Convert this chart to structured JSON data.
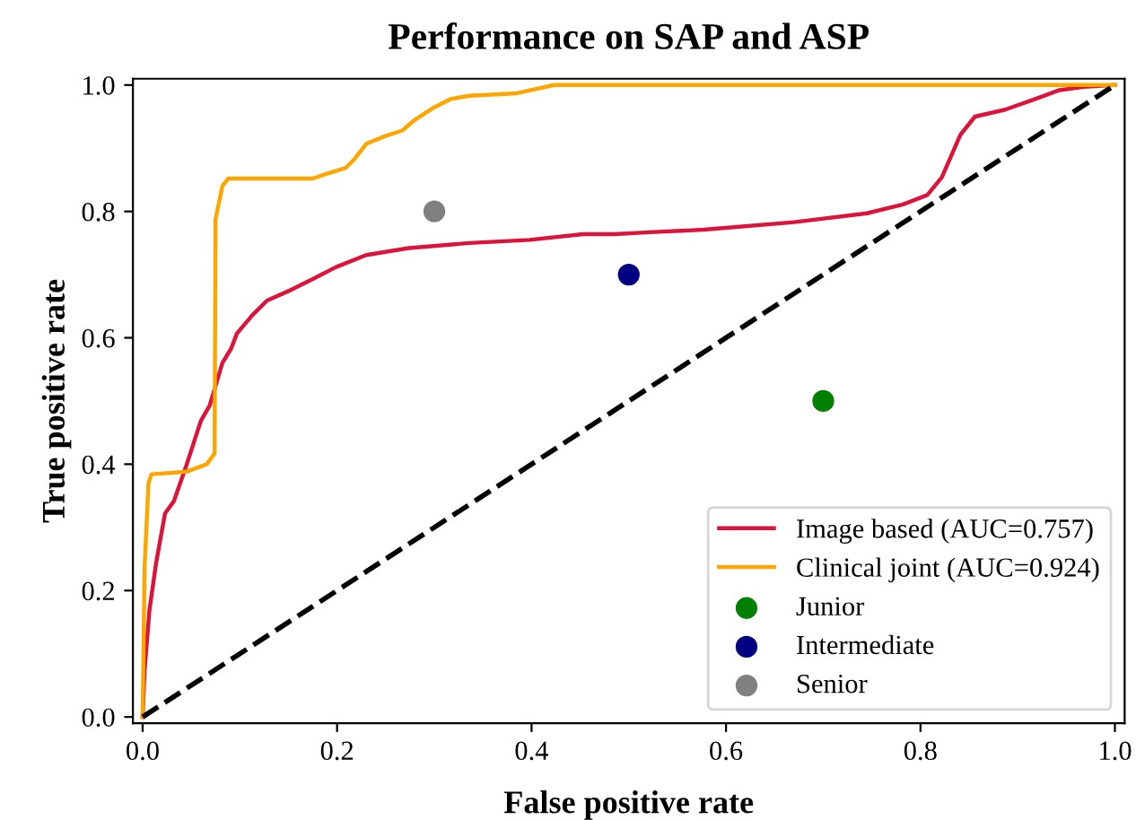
{
  "chart_data": {
    "type": "line",
    "title": "Performance on SAP and ASP",
    "xlabel": "False positive rate",
    "ylabel": "True positive rate",
    "xlim": [
      -0.01,
      1.01
    ],
    "ylim": [
      -0.01,
      1.01
    ],
    "xticks": [
      {
        "value": 0,
        "label": "0.0"
      },
      0.2,
      0.4,
      0.6,
      0.8,
      {
        "value": 1,
        "label": "1.0"
      }
    ],
    "yticks": [
      {
        "value": 0,
        "label": "0.0"
      },
      0.2,
      0.4,
      0.6,
      0.8,
      {
        "value": 1,
        "label": "1.0"
      }
    ],
    "grid": false,
    "legend": "bottom right",
    "series": [
      {
        "name": "Image based (AUC=0.757)",
        "color": "#dc143c",
        "line_style": "solid",
        "x": [
          0,
          0.002,
          0.007,
          0.014,
          0.023,
          0.032,
          0.045,
          0.057,
          0.06,
          0.069,
          0.082,
          0.091,
          0.097,
          0.113,
          0.128,
          0.15,
          0.175,
          0.199,
          0.23,
          0.274,
          0.336,
          0.398,
          0.453,
          0.485,
          0.521,
          0.577,
          0.67,
          0.745,
          0.782,
          0.807,
          0.822,
          0.841,
          0.856,
          0.887,
          0.918,
          0.943,
          0.968,
          1.0
        ],
        "values": [
          0,
          0.074,
          0.169,
          0.245,
          0.322,
          0.341,
          0.398,
          0.455,
          0.469,
          0.493,
          0.56,
          0.583,
          0.607,
          0.636,
          0.659,
          0.674,
          0.693,
          0.712,
          0.731,
          0.742,
          0.75,
          0.755,
          0.764,
          0.764,
          0.767,
          0.771,
          0.783,
          0.797,
          0.811,
          0.826,
          0.854,
          0.921,
          0.95,
          0.961,
          0.978,
          0.992,
          0.997,
          1.0
        ]
      },
      {
        "name": "Clinical joint (AUC=0.924)",
        "color": "#ffa500",
        "line_style": "solid",
        "x": [
          0,
          0.002,
          0.006,
          0.009,
          0.045,
          0.066,
          0.074,
          0.075,
          0.082,
          0.088,
          0.175,
          0.188,
          0.209,
          0.218,
          0.23,
          0.249,
          0.267,
          0.28,
          0.299,
          0.317,
          0.336,
          0.385,
          0.423,
          1.0
        ],
        "values": [
          0,
          0.236,
          0.37,
          0.384,
          0.388,
          0.4,
          0.417,
          0.788,
          0.84,
          0.852,
          0.852,
          0.859,
          0.869,
          0.883,
          0.907,
          0.919,
          0.928,
          0.945,
          0.964,
          0.978,
          0.983,
          0.987,
          1.0,
          1.0
        ]
      },
      {
        "color": "#000000",
        "line_style": "dashed",
        "x": [
          0,
          1
        ],
        "values": [
          0,
          1
        ]
      },
      {
        "name": "Junior",
        "type": "scatter",
        "color": "#008000",
        "marker": "circle",
        "x": [
          0.7
        ],
        "values": [
          0.5
        ]
      },
      {
        "name": "Intermediate",
        "type": "scatter",
        "color": "#000080",
        "marker": "circle",
        "x": [
          0.5
        ],
        "values": [
          0.7
        ]
      },
      {
        "name": "Senior",
        "type": "scatter",
        "color": "#808080",
        "marker": "circle",
        "x": [
          0.3
        ],
        "values": [
          0.8
        ]
      }
    ]
  }
}
